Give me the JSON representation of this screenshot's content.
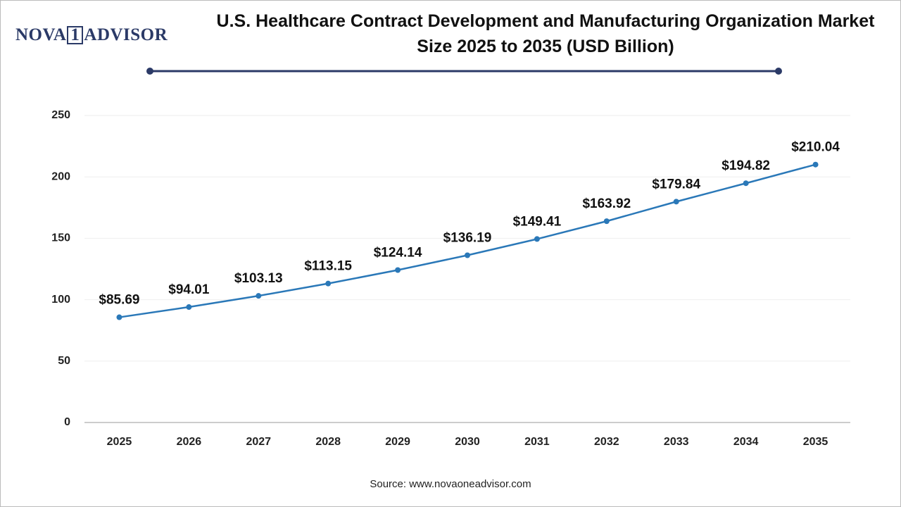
{
  "logo": {
    "left": "NOVA",
    "mark": "1",
    "right": "ADVISOR"
  },
  "chart_data": {
    "type": "line",
    "title": "U.S. Healthcare Contract Development and Manufacturing Organization Market Size 2025 to 2035 (USD Billion)",
    "categories": [
      "2025",
      "2026",
      "2027",
      "2028",
      "2029",
      "2030",
      "2031",
      "2032",
      "2033",
      "2034",
      "2035"
    ],
    "values": [
      85.69,
      94.01,
      103.13,
      113.15,
      124.14,
      136.19,
      149.41,
      163.92,
      179.84,
      194.82,
      210.04
    ],
    "value_labels": [
      "$85.69",
      "$94.01",
      "$103.13",
      "$113.15",
      "$124.14",
      "$136.19",
      "$149.41",
      "$163.92",
      "$179.84",
      "$194.82",
      "$210.04"
    ],
    "color": "#2a78b8",
    "ylim": [
      0,
      250
    ],
    "yticks": [
      0,
      50,
      100,
      150,
      200,
      250
    ],
    "grid": true,
    "source": "Source: www.novaoneadvisor.com"
  }
}
